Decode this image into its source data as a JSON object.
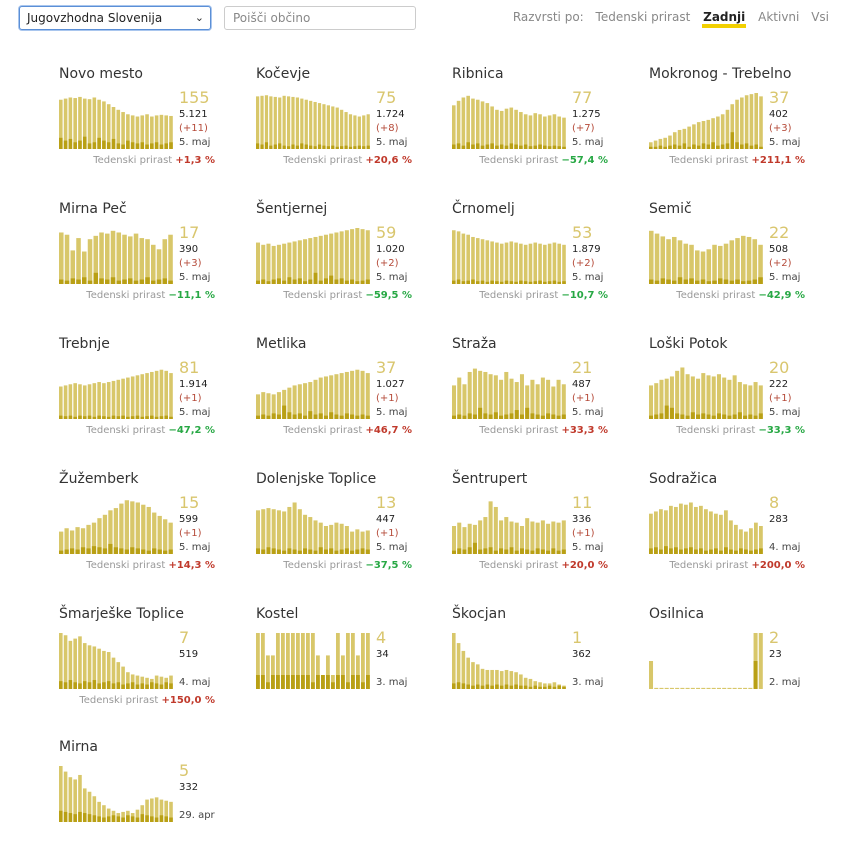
{
  "toolbar": {
    "region": "Jugovzhodna Slovenija",
    "search_placeholder": "Poišči občino",
    "sort_label": "Razvrsti po:",
    "sort_options": [
      "Tedenski prirast",
      "Zadnji",
      "Aktivni",
      "Vsi"
    ],
    "sort_selected": "Zadnji"
  },
  "colors": {
    "bar": "#d8c76a",
    "bar_dark": "#b9a015",
    "up": "#c0392b",
    "down": "#27a844"
  },
  "growth_label": "Tedenski prirast",
  "cards": [
    {
      "name": "Novo mesto",
      "big": "155",
      "total": "5.121",
      "delta": "(+11)",
      "date": "5. maj",
      "growth": "+1,3 %",
      "dir": "up",
      "bars": [
        88,
        90,
        92,
        91,
        93,
        90,
        89,
        92,
        88,
        85,
        80,
        75,
        70,
        66,
        62,
        60,
        58,
        60,
        62,
        58,
        60,
        61,
        60,
        59
      ],
      "low": [
        20,
        15,
        18,
        12,
        15,
        22,
        10,
        12,
        20,
        15,
        12,
        18,
        10,
        8,
        15,
        12,
        10,
        12,
        8,
        10,
        12,
        8,
        10,
        12
      ]
    },
    {
      "name": "Kočevje",
      "big": "75",
      "total": "1.724",
      "delta": "(+8)",
      "date": "5. maj",
      "growth": "+20,6 %",
      "dir": "up",
      "bars": [
        94,
        95,
        96,
        94,
        93,
        92,
        95,
        94,
        93,
        92,
        90,
        88,
        86,
        84,
        82,
        80,
        78,
        76,
        74,
        70,
        66,
        62,
        60,
        58,
        60,
        62
      ],
      "low": [
        10,
        8,
        12,
        6,
        8,
        10,
        6,
        5,
        8,
        6,
        10,
        8,
        6,
        5,
        8,
        6,
        5,
        6,
        4,
        5,
        6,
        4,
        5,
        6,
        5,
        6
      ]
    },
    {
      "name": "Ribnica",
      "big": "77",
      "total": "1.275",
      "delta": "(+7)",
      "date": "5. maj",
      "growth": "−57,4 %",
      "dir": "down",
      "bars": [
        78,
        86,
        92,
        95,
        90,
        88,
        85,
        82,
        76,
        70,
        68,
        72,
        74,
        70,
        66,
        62,
        60,
        64,
        62,
        58,
        60,
        62,
        58,
        56
      ],
      "low": [
        8,
        10,
        6,
        12,
        8,
        10,
        6,
        8,
        10,
        6,
        8,
        6,
        10,
        8,
        6,
        8,
        5,
        6,
        8,
        6,
        5,
        6,
        5,
        4
      ]
    },
    {
      "name": "Mokronog - Trebelno",
      "big": "37",
      "total": "402",
      "delta": "(+3)",
      "date": "5. maj",
      "growth": "+211,1 %",
      "dir": "up",
      "bars": [
        12,
        15,
        18,
        20,
        24,
        30,
        34,
        36,
        40,
        44,
        48,
        50,
        52,
        55,
        58,
        62,
        70,
        80,
        88,
        92,
        96,
        98,
        100,
        94
      ],
      "low": [
        4,
        4,
        6,
        4,
        6,
        8,
        6,
        10,
        4,
        8,
        6,
        10,
        8,
        12,
        6,
        8,
        10,
        30,
        12,
        8,
        10,
        6,
        8,
        4
      ]
    },
    {
      "name": "Mirna Peč",
      "big": "17",
      "total": "390",
      "delta": "(+3)",
      "date": "5. maj",
      "growth": "−11,1 %",
      "dir": "down",
      "bars": [
        92,
        88,
        60,
        82,
        58,
        80,
        86,
        92,
        90,
        95,
        92,
        88,
        85,
        90,
        82,
        80,
        70,
        62,
        80,
        88
      ],
      "low": [
        8,
        6,
        10,
        8,
        12,
        6,
        20,
        10,
        8,
        12,
        6,
        8,
        10,
        6,
        8,
        12,
        6,
        8,
        10,
        6
      ]
    },
    {
      "name": "Šentjernej",
      "big": "59",
      "total": "1.020",
      "delta": "(+2)",
      "date": "5. maj",
      "growth": "−59,5 %",
      "dir": "down",
      "bars": [
        74,
        70,
        72,
        68,
        70,
        72,
        74,
        76,
        78,
        80,
        82,
        84,
        86,
        88,
        90,
        92,
        94,
        96,
        98,
        100,
        98,
        96
      ],
      "low": [
        6,
        8,
        5,
        8,
        10,
        6,
        12,
        8,
        10,
        5,
        8,
        20,
        6,
        10,
        15,
        8,
        10,
        6,
        8,
        5,
        6,
        8
      ]
    },
    {
      "name": "Črnomelj",
      "big": "53",
      "total": "1.879",
      "delta": "(+2)",
      "date": "5. maj",
      "growth": "−10,7 %",
      "dir": "down",
      "bars": [
        96,
        94,
        90,
        88,
        84,
        82,
        80,
        78,
        76,
        74,
        72,
        74,
        76,
        74,
        72,
        70,
        72,
        74,
        72,
        70,
        72,
        74,
        72,
        70
      ],
      "low": [
        6,
        8,
        5,
        6,
        8,
        5,
        6,
        4,
        6,
        5,
        4,
        6,
        5,
        4,
        6,
        5,
        4,
        5,
        6,
        4,
        5,
        6,
        4,
        5
      ]
    },
    {
      "name": "Semič",
      "big": "22",
      "total": "508",
      "delta": "(+2)",
      "date": "5. maj",
      "growth": "−42,9 %",
      "dir": "down",
      "bars": [
        95,
        90,
        85,
        80,
        84,
        78,
        72,
        70,
        60,
        58,
        62,
        70,
        68,
        72,
        78,
        82,
        86,
        84,
        80,
        70
      ],
      "low": [
        8,
        6,
        10,
        8,
        6,
        12,
        8,
        10,
        6,
        8,
        5,
        6,
        10,
        8,
        6,
        8,
        5,
        6,
        8,
        12
      ]
    },
    {
      "name": "Trebnje",
      "big": "81",
      "total": "1.914",
      "delta": "(+1)",
      "date": "5. maj",
      "growth": "−47,2 %",
      "dir": "down",
      "bars": [
        58,
        60,
        62,
        64,
        62,
        60,
        62,
        64,
        66,
        64,
        66,
        68,
        70,
        72,
        74,
        76,
        78,
        80,
        82,
        84,
        86,
        88,
        86,
        82
      ],
      "low": [
        6,
        5,
        6,
        4,
        6,
        5,
        6,
        4,
        6,
        5,
        4,
        6,
        5,
        6,
        4,
        5,
        6,
        4,
        5,
        6,
        4,
        5,
        6,
        4
      ]
    },
    {
      "name": "Metlika",
      "big": "37",
      "total": "1.027",
      "delta": "(+1)",
      "date": "5. maj",
      "growth": "+46,7 %",
      "dir": "up",
      "bars": [
        44,
        48,
        46,
        44,
        48,
        52,
        56,
        60,
        62,
        64,
        66,
        70,
        74,
        76,
        78,
        80,
        82,
        84,
        86,
        88,
        86,
        82
      ],
      "low": [
        6,
        8,
        6,
        10,
        8,
        24,
        12,
        8,
        10,
        6,
        14,
        8,
        10,
        6,
        12,
        8,
        6,
        10,
        8,
        6,
        8,
        6
      ]
    },
    {
      "name": "Straža",
      "big": "21",
      "total": "487",
      "delta": "(+1)",
      "date": "5. maj",
      "growth": "+33,3 %",
      "dir": "up",
      "bars": [
        60,
        74,
        62,
        84,
        90,
        86,
        84,
        80,
        78,
        70,
        84,
        72,
        66,
        80,
        60,
        70,
        62,
        74,
        70,
        58,
        70,
        62
      ],
      "low": [
        6,
        8,
        6,
        10,
        8,
        20,
        10,
        8,
        12,
        6,
        8,
        10,
        16,
        8,
        20,
        10,
        8,
        6,
        10,
        8,
        6,
        8
      ]
    },
    {
      "name": "Loški Potok",
      "big": "20",
      "total": "222",
      "delta": "(+1)",
      "date": "5. maj",
      "growth": "−33,3 %",
      "dir": "down",
      "bars": [
        60,
        64,
        70,
        72,
        76,
        86,
        92,
        80,
        76,
        72,
        82,
        78,
        76,
        80,
        74,
        70,
        78,
        66,
        62,
        60,
        66,
        60
      ],
      "low": [
        6,
        8,
        10,
        24,
        20,
        10,
        8,
        6,
        12,
        8,
        10,
        8,
        6,
        10,
        8,
        6,
        8,
        12,
        6,
        8,
        6,
        10
      ]
    },
    {
      "name": "Žužemberk",
      "big": "15",
      "total": "599",
      "delta": "(+1)",
      "date": "5. maj",
      "growth": "+14,3 %",
      "dir": "up",
      "bars": [
        40,
        46,
        42,
        48,
        46,
        52,
        56,
        64,
        70,
        78,
        82,
        90,
        96,
        94,
        92,
        88,
        84,
        74,
        68,
        62,
        56
      ],
      "low": [
        6,
        8,
        10,
        8,
        12,
        10,
        14,
        12,
        10,
        18,
        12,
        10,
        8,
        12,
        10,
        8,
        6,
        10,
        8,
        6,
        8
      ]
    },
    {
      "name": "Dolenjske Toplice",
      "big": "13",
      "total": "447",
      "delta": "(+1)",
      "date": "5. maj",
      "growth": "−37,5 %",
      "dir": "down",
      "bars": [
        78,
        80,
        82,
        80,
        78,
        76,
        84,
        92,
        80,
        70,
        66,
        60,
        56,
        50,
        52,
        56,
        54,
        50,
        40,
        44,
        40,
        42
      ],
      "low": [
        10,
        8,
        12,
        10,
        8,
        6,
        10,
        8,
        6,
        10,
        8,
        6,
        12,
        8,
        10,
        6,
        8,
        10,
        6,
        8,
        10,
        8
      ]
    },
    {
      "name": "Šentrupert",
      "big": "11",
      "total": "336",
      "delta": "(+1)",
      "date": "5. maj",
      "growth": "+20,0 %",
      "dir": "up",
      "bars": [
        50,
        56,
        48,
        54,
        52,
        60,
        66,
        94,
        84,
        60,
        66,
        58,
        56,
        50,
        64,
        58,
        56,
        60,
        54,
        58,
        56,
        60
      ],
      "low": [
        6,
        10,
        8,
        12,
        20,
        8,
        10,
        12,
        6,
        10,
        8,
        12,
        6,
        10,
        8,
        6,
        10,
        8,
        6,
        10,
        6,
        8
      ]
    },
    {
      "name": "Sodražica",
      "big": "8",
      "total": "283",
      "delta": "",
      "date": "4. maj",
      "growth": "+200,0 %",
      "dir": "up",
      "bars": [
        72,
        76,
        80,
        78,
        86,
        84,
        90,
        88,
        92,
        84,
        86,
        80,
        76,
        72,
        70,
        78,
        60,
        52,
        44,
        40,
        46,
        56,
        50
      ],
      "low": [
        10,
        12,
        8,
        14,
        10,
        12,
        8,
        10,
        12,
        8,
        10,
        6,
        8,
        10,
        6,
        12,
        8,
        6,
        10,
        8,
        6,
        8,
        10
      ]
    },
    {
      "name": "Šmarješke Toplice",
      "big": "7",
      "total": "519",
      "delta": "",
      "date": "4. maj",
      "growth": "+150,0 %",
      "dir": "up",
      "bars": [
        100,
        96,
        86,
        90,
        94,
        82,
        78,
        76,
        72,
        68,
        66,
        56,
        48,
        40,
        30,
        26,
        24,
        22,
        20,
        18,
        24,
        22,
        20,
        24
      ],
      "low": [
        14,
        12,
        16,
        12,
        10,
        14,
        12,
        16,
        10,
        12,
        14,
        10,
        12,
        8,
        10,
        12,
        8,
        10,
        8,
        12,
        10,
        8,
        12,
        10
      ]
    },
    {
      "name": "Kostel",
      "big": "4",
      "total": "34",
      "delta": "",
      "date": "3. maj",
      "growth": "",
      "dir": "",
      "bars": [
        100,
        100,
        60,
        60,
        100,
        100,
        100,
        100,
        100,
        100,
        100,
        100,
        60,
        25,
        60,
        25,
        100,
        60,
        100,
        100,
        60,
        100,
        100
      ],
      "low": [
        25,
        25,
        12,
        25,
        25,
        25,
        25,
        25,
        25,
        25,
        25,
        12,
        25,
        25,
        25,
        12,
        25,
        25,
        12,
        25,
        25,
        12,
        25
      ]
    },
    {
      "name": "Škocjan",
      "big": "1",
      "total": "362",
      "delta": "",
      "date": "3. maj",
      "growth": "",
      "dir": "",
      "bars": [
        100,
        82,
        68,
        56,
        48,
        44,
        36,
        34,
        34,
        34,
        32,
        34,
        32,
        30,
        26,
        20,
        18,
        14,
        12,
        10,
        10,
        12,
        8,
        6
      ],
      "low": [
        10,
        12,
        10,
        8,
        6,
        8,
        6,
        8,
        6,
        8,
        6,
        8,
        6,
        8,
        6,
        6,
        4,
        6,
        4,
        4,
        6,
        4,
        6,
        4
      ]
    },
    {
      "name": "Osilnica",
      "big": "2",
      "total": "23",
      "delta": "",
      "date": "2. maj",
      "growth": "",
      "dir": "",
      "bars": [
        50,
        2,
        2,
        2,
        2,
        2,
        2,
        2,
        2,
        2,
        2,
        2,
        2,
        2,
        2,
        2,
        2,
        2,
        2,
        2,
        100,
        100
      ],
      "low": [
        0,
        0,
        0,
        0,
        0,
        0,
        0,
        0,
        0,
        0,
        0,
        0,
        0,
        0,
        0,
        0,
        0,
        0,
        0,
        0,
        50,
        0
      ]
    },
    {
      "name": "Mirna",
      "big": "5",
      "total": "332",
      "delta": "",
      "date": "29. apr",
      "growth": "",
      "dir": "",
      "bars": [
        100,
        90,
        80,
        76,
        84,
        60,
        54,
        46,
        36,
        30,
        24,
        20,
        16,
        18,
        20,
        16,
        22,
        30,
        40,
        42,
        44,
        40,
        38,
        36
      ],
      "low": [
        20,
        18,
        16,
        14,
        18,
        16,
        14,
        12,
        10,
        8,
        10,
        12,
        10,
        8,
        12,
        10,
        8,
        14,
        12,
        10,
        8,
        12,
        10,
        8
      ]
    }
  ]
}
